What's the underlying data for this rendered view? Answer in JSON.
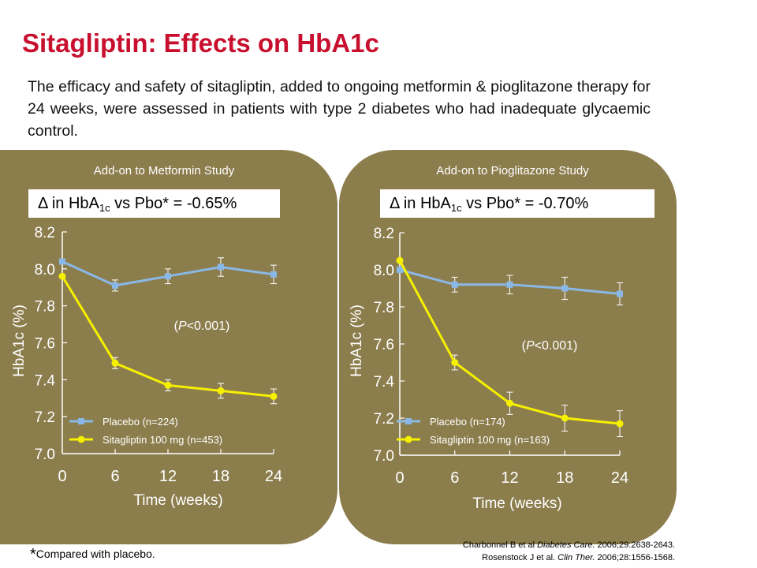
{
  "title": "Sitagliptin: Effects on HbA1c",
  "intro": "The efficacy and safety of sitagliptin, added to ongoing metformin & pioglitazone therapy for 24 weeks, were assessed in patients with type 2 diabetes who had inadequate glycaemic control.",
  "footnote": {
    "mark": "*",
    "text": "Compared with placebo."
  },
  "references": [
    {
      "authors": "Charbonnel B et al ",
      "journal": "Diabetes Care.",
      "details": " 2006;29:2638-2643."
    },
    {
      "authors": "Rosenstock J et al. ",
      "journal": "Clin Ther.",
      "details": " 2006;28:1556-1568."
    }
  ],
  "colors": {
    "title": "#c8102e",
    "panel": "#8c7d4d",
    "placebo": "#8ab8e6",
    "sitagliptin": "#f5f000",
    "text_light": "#ffffff"
  },
  "chart_data": [
    {
      "type": "line",
      "study_title": "Add-on to Metformin Study",
      "delta": {
        "symbol": "Δ",
        "pre": " in HbA",
        "sub": "1c",
        "post": " vs Pbo* = -0.65%"
      },
      "annotation": {
        "open": "(",
        "italic": "P",
        "rest": "<0.001)"
      },
      "xlabel": "Time (weeks)",
      "ylabel": "HbA1c (%)",
      "x": [
        0,
        6,
        12,
        18,
        24
      ],
      "xticks": [
        "0",
        "6",
        "12",
        "18",
        "24"
      ],
      "yticks": [
        "7.0",
        "7.2",
        "7.4",
        "7.6",
        "7.8",
        "8.0",
        "8.2"
      ],
      "ylim": [
        7.0,
        8.2
      ],
      "xlim": [
        0,
        24
      ],
      "series": [
        {
          "name": "Placebo (n=224)",
          "marker": "square",
          "values": [
            8.04,
            7.91,
            7.96,
            8.01,
            7.97
          ],
          "errors": [
            0,
            0.03,
            0.04,
            0.05,
            0.05
          ]
        },
        {
          "name": "Sitagliptin 100 mg (n=453)",
          "marker": "circle",
          "values": [
            7.96,
            7.49,
            7.37,
            7.34,
            7.31
          ],
          "errors": [
            0,
            0.03,
            0.03,
            0.04,
            0.04
          ]
        }
      ],
      "legend": "bottom-left"
    },
    {
      "type": "line",
      "study_title": "Add-on to Pioglitazone Study",
      "delta": {
        "symbol": "Δ",
        "pre": " in HbA",
        "sub": "1c",
        "post": " vs Pbo* = -0.70%"
      },
      "annotation": {
        "open": "(",
        "italic": "P",
        "rest": "<0.001)"
      },
      "xlabel": "Time (weeks)",
      "ylabel": "HbA1c (%)",
      "x": [
        0,
        6,
        12,
        18,
        24
      ],
      "xticks": [
        "0",
        "6",
        "12",
        "18",
        "24"
      ],
      "yticks": [
        "7.0",
        "7.2",
        "7.4",
        "7.6",
        "7.8",
        "8.0",
        "8.2"
      ],
      "ylim": [
        7.0,
        8.2
      ],
      "xlim": [
        0,
        24
      ],
      "series": [
        {
          "name": "Placebo (n=174)",
          "marker": "square",
          "values": [
            8.0,
            7.92,
            7.92,
            7.9,
            7.87
          ],
          "errors": [
            0,
            0.04,
            0.05,
            0.06,
            0.06
          ]
        },
        {
          "name": "Sitagliptin 100 mg (n=163)",
          "marker": "circle",
          "values": [
            8.05,
            7.5,
            7.28,
            7.2,
            7.17
          ],
          "errors": [
            0,
            0.04,
            0.06,
            0.07,
            0.07
          ]
        }
      ],
      "legend": "bottom-left"
    }
  ]
}
